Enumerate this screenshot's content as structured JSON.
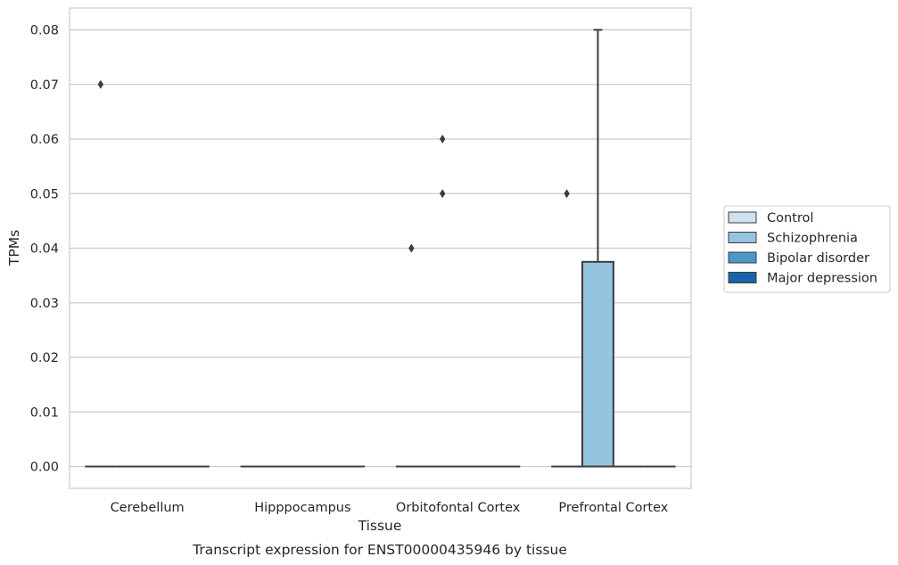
{
  "chart_data": {
    "type": "box",
    "title": "",
    "caption": "Transcript expression for ENST00000435946 by tissue",
    "xlabel": "Tissue",
    "ylabel": "TPMs",
    "ylim": [
      -0.004,
      0.084
    ],
    "yticks": [
      "0.00",
      "0.01",
      "0.02",
      "0.03",
      "0.04",
      "0.05",
      "0.06",
      "0.07",
      "0.08"
    ],
    "grid": true,
    "legend_position": "right",
    "categories": [
      "Cerebellum",
      "Hipppocampus",
      "Orbitofontal Cortex",
      "Prefrontal Cortex"
    ],
    "series": [
      {
        "name": "Control",
        "color": "#d0e1f2"
      },
      {
        "name": "Schizophrenia",
        "color": "#94c4df"
      },
      {
        "name": "Bipolar disorder",
        "color": "#4a98c9"
      },
      {
        "name": "Major depression",
        "color": "#1764ab"
      }
    ],
    "boxes": [
      {
        "category": 0,
        "series": 0,
        "q1": 0,
        "median": 0,
        "q3": 0,
        "whisker_low": 0,
        "whisker_high": 0,
        "outliers": [
          0.07
        ]
      },
      {
        "category": 0,
        "series": 1,
        "q1": 0,
        "median": 0,
        "q3": 0,
        "whisker_low": 0,
        "whisker_high": 0,
        "outliers": []
      },
      {
        "category": 0,
        "series": 2,
        "q1": 0,
        "median": 0,
        "q3": 0,
        "whisker_low": 0,
        "whisker_high": 0,
        "outliers": []
      },
      {
        "category": 0,
        "series": 3,
        "q1": 0,
        "median": 0,
        "q3": 0,
        "whisker_low": 0,
        "whisker_high": 0,
        "outliers": []
      },
      {
        "category": 1,
        "series": 0,
        "q1": 0,
        "median": 0,
        "q3": 0,
        "whisker_low": 0,
        "whisker_high": 0,
        "outliers": []
      },
      {
        "category": 1,
        "series": 1,
        "q1": 0,
        "median": 0,
        "q3": 0,
        "whisker_low": 0,
        "whisker_high": 0,
        "outliers": []
      },
      {
        "category": 1,
        "series": 2,
        "q1": 0,
        "median": 0,
        "q3": 0,
        "whisker_low": 0,
        "whisker_high": 0,
        "outliers": []
      },
      {
        "category": 1,
        "series": 3,
        "q1": 0,
        "median": 0,
        "q3": 0,
        "whisker_low": 0,
        "whisker_high": 0,
        "outliers": []
      },
      {
        "category": 2,
        "series": 0,
        "q1": 0,
        "median": 0,
        "q3": 0,
        "whisker_low": 0,
        "whisker_high": 0,
        "outliers": [
          0.04
        ]
      },
      {
        "category": 2,
        "series": 1,
        "q1": 0,
        "median": 0,
        "q3": 0,
        "whisker_low": 0,
        "whisker_high": 0,
        "outliers": [
          0.06,
          0.05
        ]
      },
      {
        "category": 2,
        "series": 2,
        "q1": 0,
        "median": 0,
        "q3": 0,
        "whisker_low": 0,
        "whisker_high": 0,
        "outliers": []
      },
      {
        "category": 2,
        "series": 3,
        "q1": 0,
        "median": 0,
        "q3": 0,
        "whisker_low": 0,
        "whisker_high": 0,
        "outliers": []
      },
      {
        "category": 3,
        "series": 0,
        "q1": 0,
        "median": 0,
        "q3": 0,
        "whisker_low": 0,
        "whisker_high": 0,
        "outliers": [
          0.05
        ]
      },
      {
        "category": 3,
        "series": 1,
        "q1": 0,
        "median": 0,
        "q3": 0.0375,
        "whisker_low": 0,
        "whisker_high": 0.08,
        "outliers": []
      },
      {
        "category": 3,
        "series": 2,
        "q1": 0,
        "median": 0,
        "q3": 0,
        "whisker_low": 0,
        "whisker_high": 0,
        "outliers": []
      },
      {
        "category": 3,
        "series": 3,
        "q1": 0,
        "median": 0,
        "q3": 0,
        "whisker_low": 0,
        "whisker_high": 0,
        "outliers": []
      }
    ]
  }
}
